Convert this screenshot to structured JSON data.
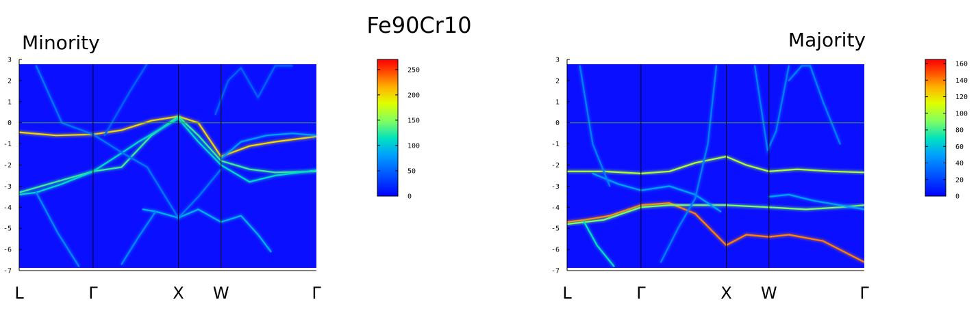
{
  "figure_title": "Fe90Cr10",
  "chart_data": [
    {
      "type": "heatmap",
      "title": "Minority",
      "xlabel": "",
      "ylabel": "",
      "ylim": [
        -7,
        3
      ],
      "yticks": [
        -7,
        -6,
        -5,
        -4,
        -3,
        -2,
        -1,
        0,
        1,
        2,
        3
      ],
      "kpoints": [
        "L",
        "Γ",
        "X",
        "W",
        "Γ"
      ],
      "kpoint_positions": [
        0,
        0.866,
        1.866,
        2.366,
        3.484
      ],
      "fermi_level": 0,
      "colorbar": {
        "min": 0,
        "max": 270,
        "ticks": [
          0,
          50,
          100,
          150,
          200,
          250
        ]
      },
      "bands": [
        {
          "x": [
            0,
            0.43,
            0.866,
            1.2,
            1.55,
            1.866,
            2.1,
            2.366,
            2.7,
            3.0,
            3.484
          ],
          "y": [
            -0.45,
            -0.6,
            -0.55,
            -0.35,
            0.1,
            0.3,
            0.0,
            -1.6,
            -1.1,
            -0.9,
            -0.65
          ],
          "intensity": 200
        },
        {
          "x": [
            0,
            0.43,
            0.866,
            1.2,
            1.55,
            1.866,
            2.1,
            2.366,
            2.7,
            3.0,
            3.484
          ],
          "y": [
            -3.3,
            -2.8,
            -2.3,
            -2.1,
            -0.6,
            0.3,
            -0.6,
            -1.8,
            -2.2,
            -2.35,
            -2.3
          ],
          "intensity": 130
        },
        {
          "x": [
            0,
            0.2,
            0.5,
            0.866,
            1.1,
            1.4,
            1.866,
            2.1,
            2.366,
            2.7,
            3.0,
            3.484
          ],
          "y": [
            -3.4,
            -3.3,
            -2.9,
            -2.3,
            -1.7,
            -0.9,
            0.2,
            -0.9,
            -2.0,
            -2.8,
            -2.5,
            -2.25
          ],
          "intensity": 110
        },
        {
          "x": [
            1.45,
            1.6,
            1.866,
            2.1,
            2.366,
            2.6,
            2.8,
            2.95
          ],
          "y": [
            -4.1,
            -4.2,
            -4.5,
            -4.1,
            -4.7,
            -4.4,
            -5.3,
            -6.1
          ],
          "intensity": 90
        },
        {
          "x": [
            2.366,
            2.6,
            2.9,
            3.2,
            3.484
          ],
          "y": [
            -1.7,
            -0.9,
            -0.6,
            -0.5,
            -0.6
          ],
          "intensity": 80
        },
        {
          "x": [
            0.2,
            0.5,
            0.866
          ],
          "y": [
            2.7,
            0.0,
            -0.55
          ],
          "intensity": 60
        },
        {
          "x": [
            0.866,
            1.2,
            1.5,
            1.866,
            2.1,
            2.366
          ],
          "y": [
            -0.55,
            -1.4,
            -2.1,
            -4.5,
            -3.5,
            -2.2
          ],
          "intensity": 60
        },
        {
          "x": [
            0.2,
            0.45,
            0.7
          ],
          "y": [
            -3.3,
            -5.2,
            -6.8
          ],
          "intensity": 70
        },
        {
          "x": [
            1.2,
            1.4,
            1.6
          ],
          "y": [
            -6.7,
            -5.4,
            -4.2
          ],
          "intensity": 70
        },
        {
          "x": [
            1.0,
            1.3,
            1.5
          ],
          "y": [
            -0.6,
            1.5,
            2.8
          ],
          "intensity": 50
        },
        {
          "x": [
            2.3,
            2.45,
            2.6,
            2.8,
            3.0,
            3.2
          ],
          "y": [
            0.4,
            2.0,
            2.6,
            1.2,
            2.7,
            2.7
          ],
          "intensity": 50
        }
      ]
    },
    {
      "type": "heatmap",
      "title": "Majority",
      "xlabel": "",
      "ylabel": "",
      "ylim": [
        -7,
        3
      ],
      "yticks": [
        -7,
        -6,
        -5,
        -4,
        -3,
        -2,
        -1,
        0,
        1,
        2,
        3
      ],
      "kpoints": [
        "L",
        "Γ",
        "X",
        "W",
        "Γ"
      ],
      "kpoint_positions": [
        0,
        0.866,
        1.866,
        2.366,
        3.484
      ],
      "fermi_level": 0,
      "colorbar": {
        "min": 0,
        "max": 165,
        "ticks": [
          0,
          20,
          40,
          60,
          80,
          100,
          120,
          140,
          160
        ]
      },
      "bands": [
        {
          "x": [
            0,
            0.2,
            0.5,
            0.866,
            1.2,
            1.5,
            1.866,
            2.1,
            2.366,
            2.6,
            3.0,
            3.484
          ],
          "y": [
            -4.7,
            -4.6,
            -4.4,
            -3.9,
            -3.8,
            -4.3,
            -5.8,
            -5.3,
            -5.4,
            -5.3,
            -5.6,
            -6.6
          ],
          "intensity": 140
        },
        {
          "x": [
            0,
            0.43,
            0.866,
            1.2,
            1.5,
            1.866,
            2.1,
            2.366,
            2.7,
            3.1,
            3.484
          ],
          "y": [
            -2.3,
            -2.3,
            -2.4,
            -2.3,
            -1.9,
            -1.6,
            -2.0,
            -2.3,
            -2.2,
            -2.3,
            -2.35
          ],
          "intensity": 100
        },
        {
          "x": [
            0,
            0.43,
            0.866,
            1.2,
            1.866,
            2.366,
            2.8,
            3.2,
            3.484
          ],
          "y": [
            -4.8,
            -4.6,
            -4.0,
            -3.9,
            -3.9,
            -4.0,
            -4.1,
            -4.0,
            -3.9
          ],
          "intensity": 90
        },
        {
          "x": [
            0.3,
            0.6,
            0.866,
            1.2,
            1.5,
            1.8
          ],
          "y": [
            -2.4,
            -2.9,
            -3.2,
            -3.0,
            -3.4,
            -4.2
          ],
          "intensity": 50
        },
        {
          "x": [
            2.366,
            2.6,
            2.9,
            3.2,
            3.484
          ],
          "y": [
            -3.5,
            -3.4,
            -3.7,
            -3.9,
            -4.1
          ],
          "intensity": 50
        },
        {
          "x": [
            1.1,
            1.3,
            1.5,
            1.65,
            1.75
          ],
          "y": [
            -6.6,
            -5.0,
            -3.6,
            -1.0,
            2.7
          ],
          "intensity": 40
        },
        {
          "x": [
            2.2,
            2.35,
            2.45,
            2.6
          ],
          "y": [
            2.7,
            -1.3,
            -0.4,
            2.7
          ],
          "intensity": 40
        },
        {
          "x": [
            2.6,
            2.75,
            2.85,
            3.0,
            3.2
          ],
          "y": [
            2.0,
            2.7,
            2.7,
            1.0,
            -1.0
          ],
          "intensity": 40
        },
        {
          "x": [
            0.15,
            0.3,
            0.5
          ],
          "y": [
            2.7,
            -1.0,
            -3.0
          ],
          "intensity": 40
        },
        {
          "x": [
            0.2,
            0.35,
            0.55
          ],
          "y": [
            -4.7,
            -5.8,
            -6.8
          ],
          "intensity": 70
        }
      ]
    }
  ]
}
